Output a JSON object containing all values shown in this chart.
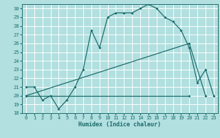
{
  "xlabel": "Humidex (Indice chaleur)",
  "xlim": [
    -0.5,
    23.5
  ],
  "ylim": [
    18,
    30.5
  ],
  "xticks": [
    0,
    1,
    2,
    3,
    4,
    5,
    6,
    7,
    8,
    9,
    10,
    11,
    12,
    13,
    14,
    15,
    16,
    17,
    18,
    19,
    20,
    21,
    22,
    23
  ],
  "yticks": [
    18,
    19,
    20,
    21,
    22,
    23,
    24,
    25,
    26,
    27,
    28,
    29,
    30
  ],
  "background_color": "#b2dfdf",
  "grid_color": "#d4efef",
  "line_color": "#1a6b6b",
  "curve1_x": [
    0,
    1,
    2,
    3,
    4,
    5,
    6,
    7,
    8,
    9,
    10,
    11,
    12,
    13,
    14,
    15,
    16,
    17,
    18,
    19,
    20,
    21,
    22,
    23
  ],
  "curve1_y": [
    21,
    21,
    19.5,
    20,
    18.5,
    19.5,
    21,
    23,
    27.5,
    25.5,
    29,
    29.5,
    29.5,
    29.5,
    30,
    30.5,
    30,
    29,
    28.5,
    27.5,
    25.5,
    21.5,
    23,
    20
  ],
  "curve2_x": [
    0,
    20,
    22
  ],
  "curve2_y": [
    20,
    26,
    20
  ],
  "curve3_x": [
    0,
    20
  ],
  "curve3_y": [
    20,
    20
  ]
}
